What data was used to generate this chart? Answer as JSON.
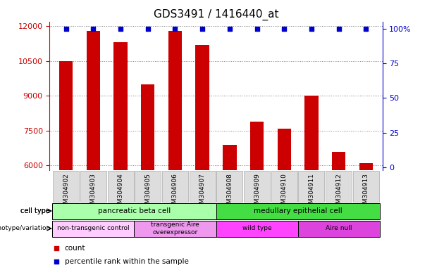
{
  "title": "GDS3491 / 1416440_at",
  "samples": [
    "GSM304902",
    "GSM304903",
    "GSM304904",
    "GSM304905",
    "GSM304906",
    "GSM304907",
    "GSM304908",
    "GSM304909",
    "GSM304910",
    "GSM304911",
    "GSM304912",
    "GSM304913"
  ],
  "counts": [
    10500,
    11800,
    11300,
    9500,
    11800,
    11200,
    6900,
    7900,
    7600,
    9000,
    6600,
    6100
  ],
  "percentile_ranks": [
    100,
    100,
    100,
    100,
    100,
    100,
    100,
    100,
    100,
    100,
    100,
    100
  ],
  "ylim_left": [
    5800,
    12200
  ],
  "ylim_right": [
    -2,
    105
  ],
  "yticks_left": [
    6000,
    7500,
    9000,
    10500,
    12000
  ],
  "yticks_right": [
    0,
    25,
    50,
    75,
    100
  ],
  "bar_color": "#cc0000",
  "dot_color": "#0000cc",
  "cell_types": [
    {
      "label": "pancreatic beta cell",
      "start": 0,
      "end": 5,
      "color": "#aaffaa"
    },
    {
      "label": "medullary epithelial cell",
      "start": 6,
      "end": 11,
      "color": "#44dd44"
    }
  ],
  "genotype_variations": [
    {
      "label": "non-transgenic control",
      "start": 0,
      "end": 2,
      "color": "#ffccff"
    },
    {
      "label": "transgenic Aire\noverexpressor",
      "start": 3,
      "end": 5,
      "color": "#ee99ee"
    },
    {
      "label": "wild type",
      "start": 6,
      "end": 8,
      "color": "#ff44ff"
    },
    {
      "label": "Aire null",
      "start": 9,
      "end": 11,
      "color": "#dd44dd"
    }
  ],
  "legend_count_color": "#cc0000",
  "legend_dot_color": "#0000cc",
  "title_fontsize": 11,
  "tick_fontsize": 7,
  "label_fontsize": 8
}
